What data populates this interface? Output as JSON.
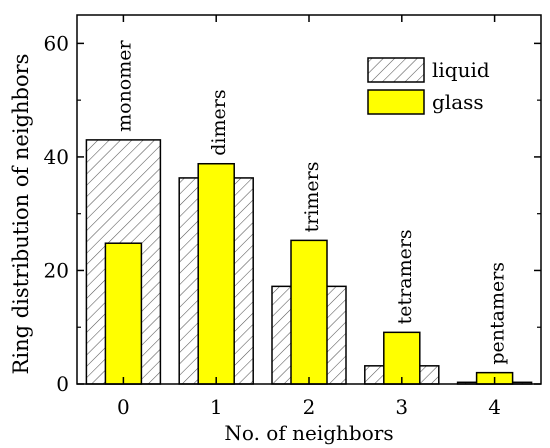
{
  "chart_data": {
    "type": "bar",
    "xlabel": "No. of neighbors",
    "ylabel": "Ring distribution of neighbors",
    "categories": [
      "0",
      "1",
      "2",
      "3",
      "4"
    ],
    "ylim": [
      0,
      65
    ],
    "yticks": [
      0,
      20,
      40,
      60
    ],
    "grid": false,
    "legend_position": "top-right",
    "series": [
      {
        "name": "liquid",
        "values": [
          43.0,
          36.3,
          17.2,
          3.2,
          0.3
        ],
        "fill": "hatched",
        "color": "#ffffff"
      },
      {
        "name": "glass",
        "values": [
          24.8,
          38.8,
          25.3,
          9.1,
          2.0
        ],
        "fill": "solid",
        "color": "#ffff00"
      }
    ],
    "annotations": [
      "monomer",
      "dimers",
      "trimers",
      "tetramers",
      "pentamers"
    ]
  }
}
